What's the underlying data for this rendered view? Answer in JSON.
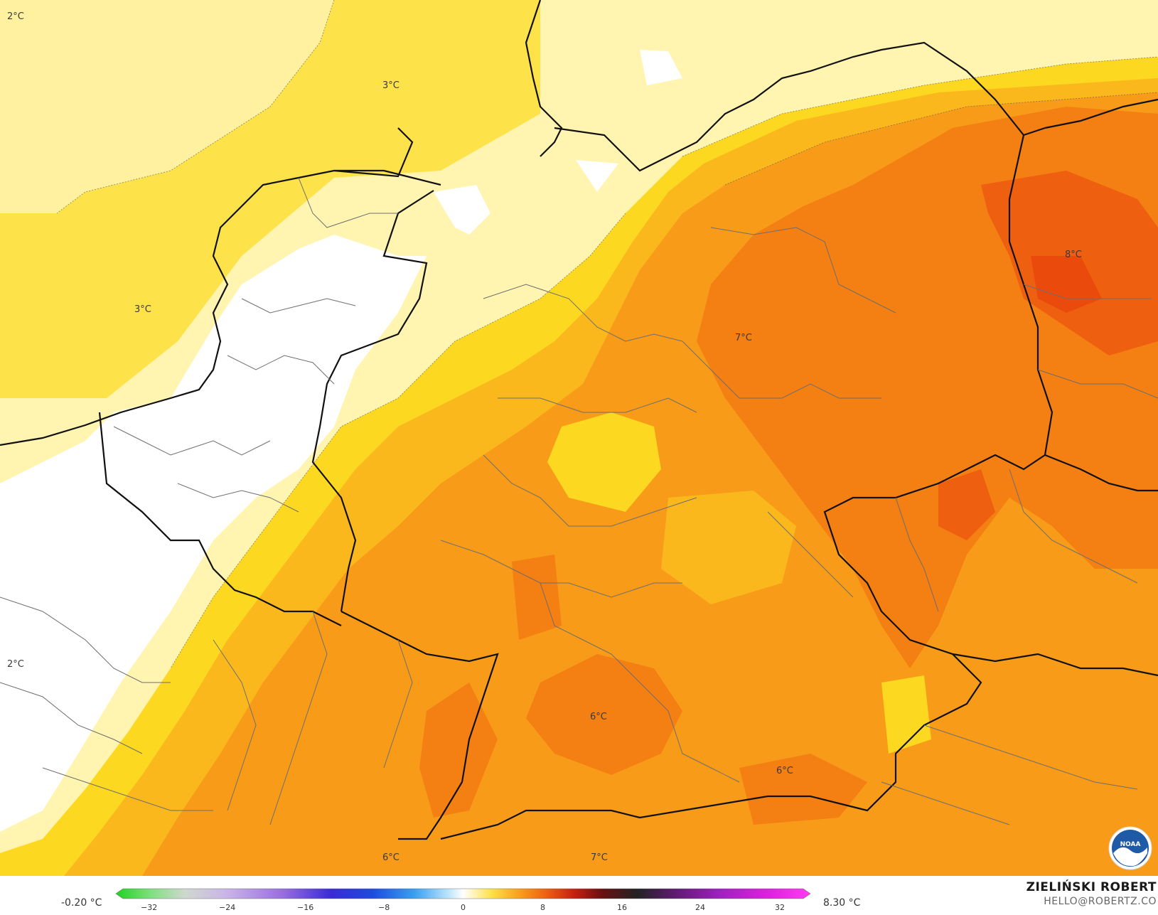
{
  "map": {
    "contour_labels": [
      {
        "text": "2°C"
      },
      {
        "text": "3°C"
      },
      {
        "text": "3°C"
      },
      {
        "text": "7°C"
      },
      {
        "text": "8°C"
      },
      {
        "text": "2°C"
      },
      {
        "text": "6°C"
      },
      {
        "text": "6°C"
      },
      {
        "text": "6°C"
      },
      {
        "text": "7°C"
      }
    ],
    "logo_text": "NOAA"
  },
  "legend": {
    "min_label": "-0.20 °C",
    "max_label": "8.30 °C",
    "ticks": [
      "−32",
      "−24",
      "−16",
      "−8",
      "0",
      "8",
      "16",
      "24",
      "32"
    ]
  },
  "credit": {
    "name": "ZIELIŃSKI ROBERT",
    "email": "HELLO@ROBERTZ.CO"
  },
  "colors": {
    "very_light": "#fff4b0",
    "light_yellow": "#fde24a",
    "yellow": "#fdd820",
    "amber": "#fbb81c",
    "orange": "#f89b18",
    "dark_orange": "#f47f12",
    "red_orange": "#ef5f10"
  }
}
